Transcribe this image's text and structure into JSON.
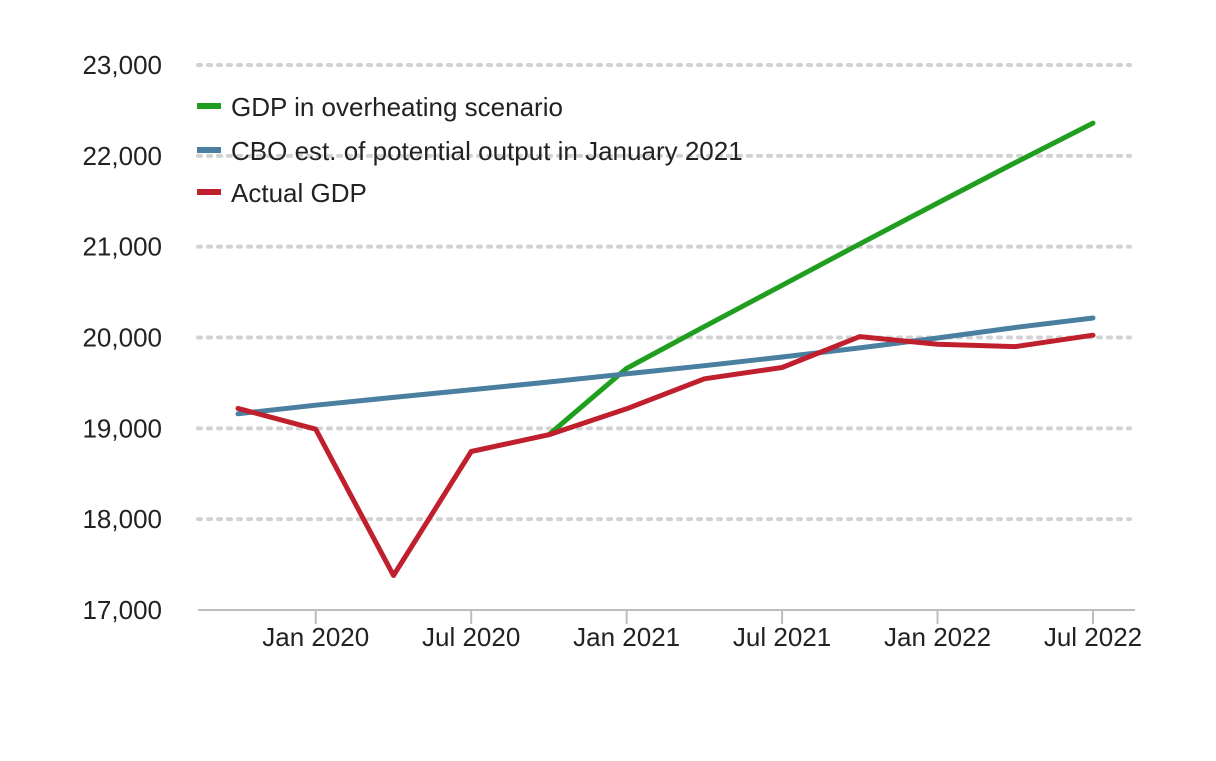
{
  "chart_data": {
    "type": "line",
    "title": "",
    "xlabel": "",
    "ylabel": "",
    "x": [
      "2019-10",
      "2020-01",
      "2020-04",
      "2020-07",
      "2020-10",
      "2021-01",
      "2021-04",
      "2021-07",
      "2021-10",
      "2022-01",
      "2022-04",
      "2022-07"
    ],
    "x_ticks": [
      {
        "x": "2020-01",
        "label": "Jan 2020"
      },
      {
        "x": "2020-07",
        "label": "Jul 2020"
      },
      {
        "x": "2021-01",
        "label": "Jan 2021"
      },
      {
        "x": "2021-07",
        "label": "Jul 2021"
      },
      {
        "x": "2022-01",
        "label": "Jan 2022"
      },
      {
        "x": "2022-07",
        "label": "Jul 2022"
      }
    ],
    "ylim": [
      17000,
      23000
    ],
    "y_ticks": [
      {
        "value": 17000,
        "label": "17,000"
      },
      {
        "value": 18000,
        "label": "18,000"
      },
      {
        "value": 19000,
        "label": "19,000"
      },
      {
        "value": 20000,
        "label": "20,000"
      },
      {
        "value": 21000,
        "label": "21,000"
      },
      {
        "value": 22000,
        "label": "22,000"
      },
      {
        "value": 23000,
        "label": "23,000"
      }
    ],
    "grid": "horizontal-dotted",
    "legend": "top-left",
    "series": [
      {
        "name": "GDP in overheating scenario",
        "color": "#1f9e1f",
        "values": [
          null,
          null,
          null,
          null,
          18930,
          19660,
          20120,
          20575,
          21030,
          21480,
          21925,
          22360
        ]
      },
      {
        "name": "CBO est. of potential output in January 2021",
        "color": "#4a7fa0",
        "values": [
          19160,
          19255,
          19340,
          19425,
          19510,
          19600,
          19690,
          19785,
          19885,
          19995,
          20110,
          20215
        ]
      },
      {
        "name": "Actual GDP",
        "color": "#c0202e",
        "values": [
          19220,
          18990,
          17380,
          18745,
          18930,
          19215,
          19545,
          19670,
          20010,
          19925,
          19900,
          20025
        ]
      }
    ]
  }
}
